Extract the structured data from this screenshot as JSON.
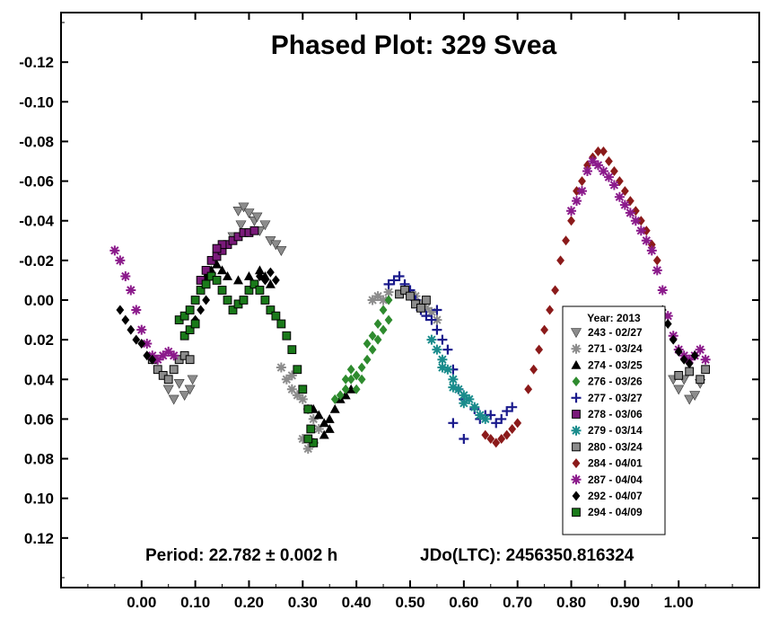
{
  "chart_data": {
    "type": "scatter",
    "title": "Phased Plot: 329 Svea",
    "xlabel": "",
    "ylabel": "",
    "x_ticks": [
      "0.00",
      "0.10",
      "0.20",
      "0.30",
      "0.40",
      "0.50",
      "0.60",
      "0.70",
      "0.80",
      "0.90",
      "1.00"
    ],
    "y_ticks": [
      "-0.12",
      "-0.10",
      "-0.08",
      "-0.06",
      "-0.04",
      "-0.02",
      "0.00",
      "0.02",
      "0.04",
      "0.06",
      "0.08",
      "0.10",
      "0.12"
    ],
    "xlim": [
      -0.15,
      1.15
    ],
    "ylim": [
      -0.145,
      0.145
    ],
    "y_inverted": true,
    "grid": false,
    "legend_position": "bottom-right",
    "legend_title": "Year: 2013",
    "annotations": {
      "period": "Period: 22.782 ± 0.002 h",
      "epoch": "JDo(LTC): 2456350.816324"
    },
    "series": [
      {
        "name": "243 - 02/27",
        "marker": "triangle-down",
        "color": "#8c8c8c",
        "points": [
          [
            0.05,
            0.045
          ],
          [
            0.06,
            0.05
          ],
          [
            0.07,
            0.042
          ],
          [
            0.08,
            0.048
          ],
          [
            0.09,
            0.045
          ],
          [
            0.095,
            0.04
          ],
          [
            0.18,
            -0.045
          ],
          [
            0.19,
            -0.047
          ],
          [
            0.2,
            -0.044
          ],
          [
            0.21,
            -0.04
          ],
          [
            0.22,
            -0.035
          ],
          [
            0.23,
            -0.038
          ],
          [
            0.24,
            -0.03
          ],
          [
            0.25,
            -0.028
          ],
          [
            0.26,
            -0.025
          ],
          [
            0.17,
            -0.032
          ],
          [
            0.185,
            -0.038
          ],
          [
            0.215,
            -0.042
          ],
          [
            1.0,
            0.045
          ],
          [
            1.01,
            0.04
          ],
          [
            1.02,
            0.05
          ],
          [
            1.03,
            0.048
          ],
          [
            1.04,
            0.042
          ],
          [
            0.99,
            0.04
          ]
        ]
      },
      {
        "name": "271 - 03/24",
        "marker": "asterisk",
        "color": "#8c8c8c",
        "points": [
          [
            0.27,
            0.04
          ],
          [
            0.28,
            0.045
          ],
          [
            0.29,
            0.048
          ],
          [
            0.3,
            0.05
          ],
          [
            0.31,
            0.055
          ],
          [
            0.32,
            0.06
          ],
          [
            0.33,
            0.065
          ],
          [
            0.3,
            0.07
          ],
          [
            0.31,
            0.075
          ],
          [
            0.32,
            0.072
          ],
          [
            0.28,
            0.038
          ],
          [
            0.26,
            0.034
          ],
          [
            0.43,
            0.0
          ],
          [
            0.44,
            -0.002
          ],
          [
            0.45,
            0.0
          ],
          [
            0.5,
            -0.003
          ],
          [
            0.51,
            -0.002
          ],
          [
            0.52,
            0.002
          ],
          [
            0.54,
            0.006
          ],
          [
            0.55,
            0.01
          ],
          [
            0.53,
            0.004
          ],
          [
            0.46,
            -0.004
          ]
        ]
      },
      {
        "name": "274 - 03/25",
        "marker": "triangle-up",
        "color": "#000000",
        "points": [
          [
            0.12,
            -0.012
          ],
          [
            0.13,
            -0.015
          ],
          [
            0.14,
            -0.018
          ],
          [
            0.15,
            -0.015
          ],
          [
            0.16,
            -0.012
          ],
          [
            0.18,
            -0.01
          ],
          [
            0.2,
            -0.012
          ],
          [
            0.22,
            -0.015
          ],
          [
            0.23,
            -0.012
          ],
          [
            0.24,
            -0.008
          ],
          [
            0.32,
            0.055
          ],
          [
            0.33,
            0.058
          ],
          [
            0.34,
            0.062
          ],
          [
            0.35,
            0.06
          ],
          [
            0.36,
            0.055
          ],
          [
            0.37,
            0.05
          ],
          [
            0.38,
            0.048
          ],
          [
            0.39,
            0.045
          ],
          [
            0.34,
            0.068
          ],
          [
            0.35,
            0.065
          ]
        ]
      },
      {
        "name": "276 - 03/26",
        "marker": "diamond",
        "color": "#2e8b2e",
        "points": [
          [
            0.37,
            0.048
          ],
          [
            0.38,
            0.045
          ],
          [
            0.39,
            0.04
          ],
          [
            0.4,
            0.038
          ],
          [
            0.41,
            0.034
          ],
          [
            0.42,
            0.03
          ],
          [
            0.43,
            0.025
          ],
          [
            0.44,
            0.02
          ],
          [
            0.45,
            0.015
          ],
          [
            0.46,
            0.01
          ],
          [
            0.41,
            0.04
          ],
          [
            0.4,
            0.045
          ],
          [
            0.43,
            0.018
          ],
          [
            0.44,
            0.012
          ],
          [
            0.42,
            0.022
          ],
          [
            0.38,
            0.04
          ],
          [
            0.39,
            0.035
          ],
          [
            0.36,
            0.05
          ],
          [
            0.45,
            0.005
          ],
          [
            0.46,
            0.0
          ]
        ]
      },
      {
        "name": "277 - 03/27",
        "marker": "plus",
        "color": "#1a1a8c",
        "points": [
          [
            0.46,
            -0.008
          ],
          [
            0.47,
            -0.01
          ],
          [
            0.48,
            -0.012
          ],
          [
            0.49,
            -0.008
          ],
          [
            0.5,
            -0.005
          ],
          [
            0.51,
            0.0
          ],
          [
            0.52,
            0.005
          ],
          [
            0.53,
            0.008
          ],
          [
            0.54,
            0.01
          ],
          [
            0.55,
            0.015
          ],
          [
            0.56,
            0.02
          ],
          [
            0.57,
            0.025
          ],
          [
            0.58,
            0.035
          ],
          [
            0.59,
            0.045
          ],
          [
            0.6,
            0.05
          ],
          [
            0.62,
            0.055
          ],
          [
            0.63,
            0.06
          ],
          [
            0.64,
            0.058
          ],
          [
            0.65,
            0.058
          ],
          [
            0.66,
            0.062
          ],
          [
            0.67,
            0.06
          ],
          [
            0.68,
            0.056
          ],
          [
            0.69,
            0.054
          ],
          [
            0.55,
            0.005
          ],
          [
            0.58,
            0.062
          ],
          [
            0.6,
            0.07
          ]
        ]
      },
      {
        "name": "278 - 03/06",
        "marker": "square",
        "color": "#7a1a7a",
        "points": [
          [
            0.11,
            -0.01
          ],
          [
            0.12,
            -0.015
          ],
          [
            0.13,
            -0.02
          ],
          [
            0.14,
            -0.022
          ],
          [
            0.15,
            -0.025
          ],
          [
            0.16,
            -0.028
          ],
          [
            0.17,
            -0.03
          ],
          [
            0.18,
            -0.032
          ],
          [
            0.19,
            -0.034
          ],
          [
            0.2,
            -0.034
          ],
          [
            0.21,
            -0.035
          ],
          [
            0.15,
            -0.028
          ],
          [
            0.14,
            -0.026
          ]
        ]
      },
      {
        "name": "279 - 03/14",
        "marker": "asterisk",
        "color": "#1a8c8c",
        "points": [
          [
            0.54,
            0.02
          ],
          [
            0.55,
            0.025
          ],
          [
            0.56,
            0.03
          ],
          [
            0.57,
            0.035
          ],
          [
            0.58,
            0.04
          ],
          [
            0.59,
            0.045
          ],
          [
            0.6,
            0.048
          ],
          [
            0.61,
            0.05
          ],
          [
            0.62,
            0.054
          ],
          [
            0.63,
            0.058
          ],
          [
            0.64,
            0.06
          ],
          [
            0.56,
            0.034
          ],
          [
            0.58,
            0.044
          ],
          [
            0.6,
            0.052
          ]
        ]
      },
      {
        "name": "280 - 03/24",
        "marker": "square",
        "color": "#8c8c8c",
        "points": [
          [
            0.02,
            0.03
          ],
          [
            0.03,
            0.035
          ],
          [
            0.04,
            0.038
          ],
          [
            0.05,
            0.04
          ],
          [
            0.06,
            0.035
          ],
          [
            0.07,
            0.03
          ],
          [
            0.08,
            0.028
          ],
          [
            0.09,
            0.03
          ],
          [
            0.48,
            -0.003
          ],
          [
            0.49,
            -0.005
          ],
          [
            0.5,
            -0.002
          ],
          [
            0.51,
            0.002
          ],
          [
            0.52,
            0.004
          ],
          [
            0.53,
            0.0
          ],
          [
            1.0,
            0.038
          ],
          [
            1.02,
            0.036
          ],
          [
            1.04,
            0.04
          ],
          [
            1.05,
            0.035
          ]
        ]
      },
      {
        "name": "284 - 04/01",
        "marker": "diamond",
        "color": "#8b1a1a",
        "points": [
          [
            0.64,
            0.068
          ],
          [
            0.65,
            0.07
          ],
          [
            0.66,
            0.072
          ],
          [
            0.67,
            0.07
          ],
          [
            0.68,
            0.068
          ],
          [
            0.69,
            0.065
          ],
          [
            0.7,
            0.062
          ],
          [
            0.72,
            0.045
          ],
          [
            0.73,
            0.035
          ],
          [
            0.74,
            0.025
          ],
          [
            0.75,
            0.015
          ],
          [
            0.76,
            0.005
          ],
          [
            0.77,
            -0.005
          ],
          [
            0.78,
            -0.02
          ],
          [
            0.79,
            -0.03
          ],
          [
            0.8,
            -0.04
          ],
          [
            0.81,
            -0.055
          ],
          [
            0.82,
            -0.06
          ],
          [
            0.83,
            -0.068
          ],
          [
            0.84,
            -0.072
          ],
          [
            0.85,
            -0.075
          ],
          [
            0.86,
            -0.075
          ],
          [
            0.87,
            -0.07
          ],
          [
            0.88,
            -0.065
          ],
          [
            0.89,
            -0.06
          ],
          [
            0.9,
            -0.055
          ],
          [
            0.91,
            -0.05
          ],
          [
            0.92,
            -0.045
          ],
          [
            0.93,
            -0.04
          ],
          [
            0.94,
            -0.035
          ],
          [
            0.95,
            -0.028
          ],
          [
            0.96,
            -0.02
          ]
        ]
      },
      {
        "name": "287 - 04/04",
        "marker": "asterisk",
        "color": "#8b1a8b",
        "points": [
          [
            -0.05,
            -0.025
          ],
          [
            -0.04,
            -0.02
          ],
          [
            -0.03,
            -0.012
          ],
          [
            -0.02,
            -0.005
          ],
          [
            -0.01,
            0.005
          ],
          [
            0.0,
            0.015
          ],
          [
            0.01,
            0.022
          ],
          [
            0.02,
            0.028
          ],
          [
            0.03,
            0.03
          ],
          [
            0.04,
            0.028
          ],
          [
            0.05,
            0.026
          ],
          [
            0.06,
            0.028
          ],
          [
            0.8,
            -0.045
          ],
          [
            0.81,
            -0.05
          ],
          [
            0.82,
            -0.055
          ],
          [
            0.83,
            -0.065
          ],
          [
            0.84,
            -0.07
          ],
          [
            0.85,
            -0.068
          ],
          [
            0.86,
            -0.065
          ],
          [
            0.87,
            -0.062
          ],
          [
            0.88,
            -0.058
          ],
          [
            0.89,
            -0.052
          ],
          [
            0.9,
            -0.048
          ],
          [
            0.91,
            -0.044
          ],
          [
            0.92,
            -0.04
          ],
          [
            0.93,
            -0.035
          ],
          [
            0.94,
            -0.03
          ],
          [
            0.95,
            -0.025
          ],
          [
            0.96,
            -0.015
          ],
          [
            0.97,
            -0.005
          ],
          [
            0.98,
            0.008
          ],
          [
            0.99,
            0.018
          ],
          [
            1.0,
            0.025
          ],
          [
            1.01,
            0.028
          ],
          [
            1.02,
            0.03
          ],
          [
            1.03,
            0.028
          ],
          [
            1.04,
            0.025
          ],
          [
            1.05,
            0.03
          ]
        ]
      },
      {
        "name": "292 - 04/07",
        "marker": "diamond",
        "color": "#000000",
        "points": [
          [
            -0.04,
            0.005
          ],
          [
            -0.03,
            0.01
          ],
          [
            -0.02,
            0.015
          ],
          [
            -0.01,
            0.02
          ],
          [
            0.0,
            0.022
          ],
          [
            0.01,
            0.028
          ],
          [
            0.02,
            0.03
          ],
          [
            0.1,
            0.01
          ],
          [
            0.11,
            0.005
          ],
          [
            0.12,
            0.0
          ],
          [
            0.22,
            -0.012
          ],
          [
            0.23,
            -0.01
          ],
          [
            0.24,
            -0.014
          ],
          [
            0.25,
            -0.01
          ],
          [
            0.97,
            0.005
          ],
          [
            0.98,
            0.012
          ],
          [
            0.99,
            0.02
          ],
          [
            1.0,
            0.026
          ],
          [
            1.01,
            0.03
          ],
          [
            1.02,
            0.032
          ],
          [
            1.03,
            0.028
          ]
        ]
      },
      {
        "name": "294 - 04/09",
        "marker": "square",
        "color": "#1a7a1a",
        "points": [
          [
            0.07,
            0.01
          ],
          [
            0.08,
            0.008
          ],
          [
            0.09,
            0.005
          ],
          [
            0.1,
            0.0
          ],
          [
            0.11,
            -0.005
          ],
          [
            0.12,
            -0.008
          ],
          [
            0.13,
            -0.012
          ],
          [
            0.14,
            -0.01
          ],
          [
            0.15,
            -0.005
          ],
          [
            0.16,
            0.0
          ],
          [
            0.17,
            0.005
          ],
          [
            0.18,
            0.002
          ],
          [
            0.19,
            0.0
          ],
          [
            0.2,
            -0.005
          ],
          [
            0.21,
            -0.008
          ],
          [
            0.22,
            -0.005
          ],
          [
            0.23,
            0.0
          ],
          [
            0.24,
            0.005
          ],
          [
            0.25,
            0.008
          ],
          [
            0.26,
            0.012
          ],
          [
            0.27,
            0.018
          ],
          [
            0.28,
            0.025
          ],
          [
            0.29,
            0.035
          ],
          [
            0.3,
            0.045
          ],
          [
            0.31,
            0.055
          ],
          [
            0.315,
            0.065
          ],
          [
            0.32,
            0.072
          ],
          [
            0.31,
            0.07
          ],
          [
            0.08,
            0.018
          ],
          [
            0.09,
            0.015
          ],
          [
            0.1,
            0.012
          ]
        ]
      }
    ]
  }
}
